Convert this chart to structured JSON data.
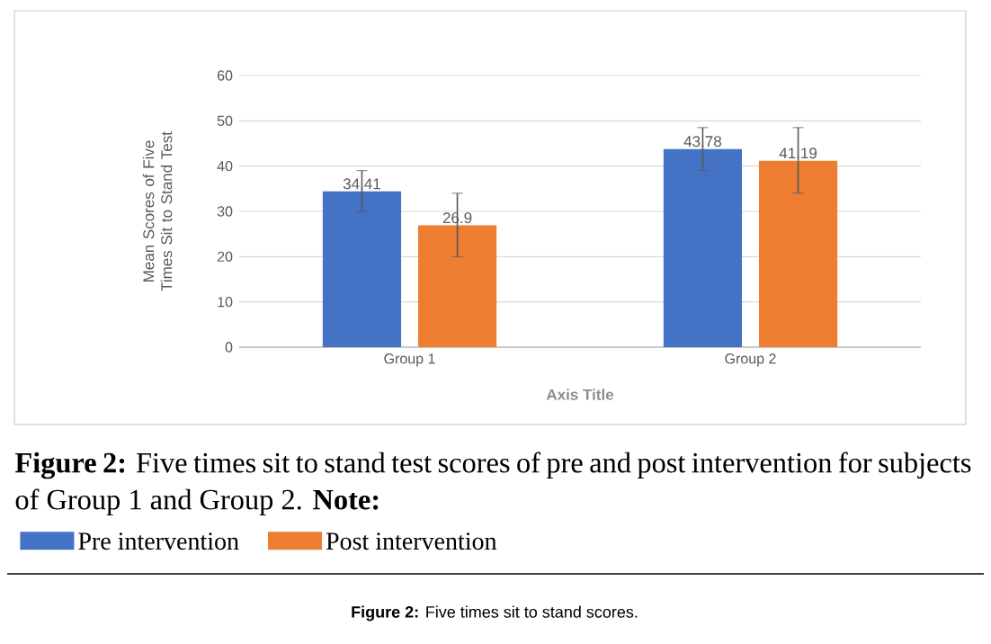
{
  "chart_data": {
    "type": "bar",
    "categories": [
      "Group 1",
      "Group 2"
    ],
    "series": [
      {
        "name": "Pre intervention",
        "color": "#4472c4",
        "values": [
          34.41,
          43.78
        ],
        "errors": [
          [
            30,
            39
          ],
          [
            39,
            48.5
          ]
        ]
      },
      {
        "name": "Post intervention",
        "color": "#ed7d31",
        "values": [
          26.9,
          41.19
        ],
        "errors": [
          [
            20,
            34
          ],
          [
            34,
            48.5
          ]
        ]
      }
    ],
    "xlabel": "Axis Title",
    "ylabel": "Mean Scores of Five Times Sit to Stand Test",
    "ylim": [
      0,
      60
    ],
    "yticks": [
      0,
      10,
      20,
      30,
      40,
      50,
      60
    ],
    "grid": "y",
    "data_labels": true,
    "legend": "bottom",
    "annotations": [
      "**Figure 2:** Five times sit to stand test scores of pre and post intervention for subjects of Group 1 and Group 2. **Note:**",
      "**Figure 2:** Five times sit to stand scores."
    ]
  }
}
